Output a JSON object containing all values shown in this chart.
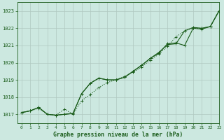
{
  "title": "Graphe pression niveau de la mer (hPa)",
  "bg_color": "#cce8e0",
  "plot_bg_color": "#cce8e0",
  "grid_color": "#b0c8c0",
  "line_color": "#1a5c1a",
  "xlim": [
    -0.5,
    23
  ],
  "ylim": [
    1016.5,
    1023.5
  ],
  "yticks": [
    1017,
    1018,
    1019,
    1020,
    1021,
    1022,
    1023
  ],
  "xticks": [
    0,
    1,
    2,
    3,
    4,
    5,
    6,
    7,
    8,
    9,
    10,
    11,
    12,
    13,
    14,
    15,
    16,
    17,
    18,
    19,
    20,
    21,
    22,
    23
  ],
  "series1": [
    1017.1,
    1017.2,
    1017.4,
    1017.0,
    1016.95,
    1017.0,
    1017.05,
    1018.2,
    1018.8,
    1019.1,
    1019.0,
    1019.0,
    1019.15,
    1019.5,
    1019.85,
    1020.25,
    1020.6,
    1021.05,
    1021.1,
    1021.85,
    1022.05,
    1022.0,
    1022.1,
    1023.0
  ],
  "series2": [
    1017.1,
    1017.2,
    1017.4,
    1017.0,
    1016.95,
    1017.0,
    1017.05,
    1018.2,
    1018.8,
    1019.1,
    1019.0,
    1019.0,
    1019.15,
    1019.5,
    1019.85,
    1020.25,
    1020.55,
    1021.1,
    1021.15,
    1021.0,
    1022.0,
    1021.95,
    1022.1,
    1023.0
  ],
  "series3": [
    1017.1,
    1017.2,
    1017.35,
    1017.0,
    1016.95,
    1017.3,
    1017.0,
    1017.8,
    1018.15,
    1018.55,
    1018.85,
    1019.0,
    1019.2,
    1019.45,
    1019.75,
    1020.15,
    1020.5,
    1020.95,
    1021.5,
    1021.85,
    1022.0,
    1022.0,
    1022.1,
    1023.0
  ]
}
